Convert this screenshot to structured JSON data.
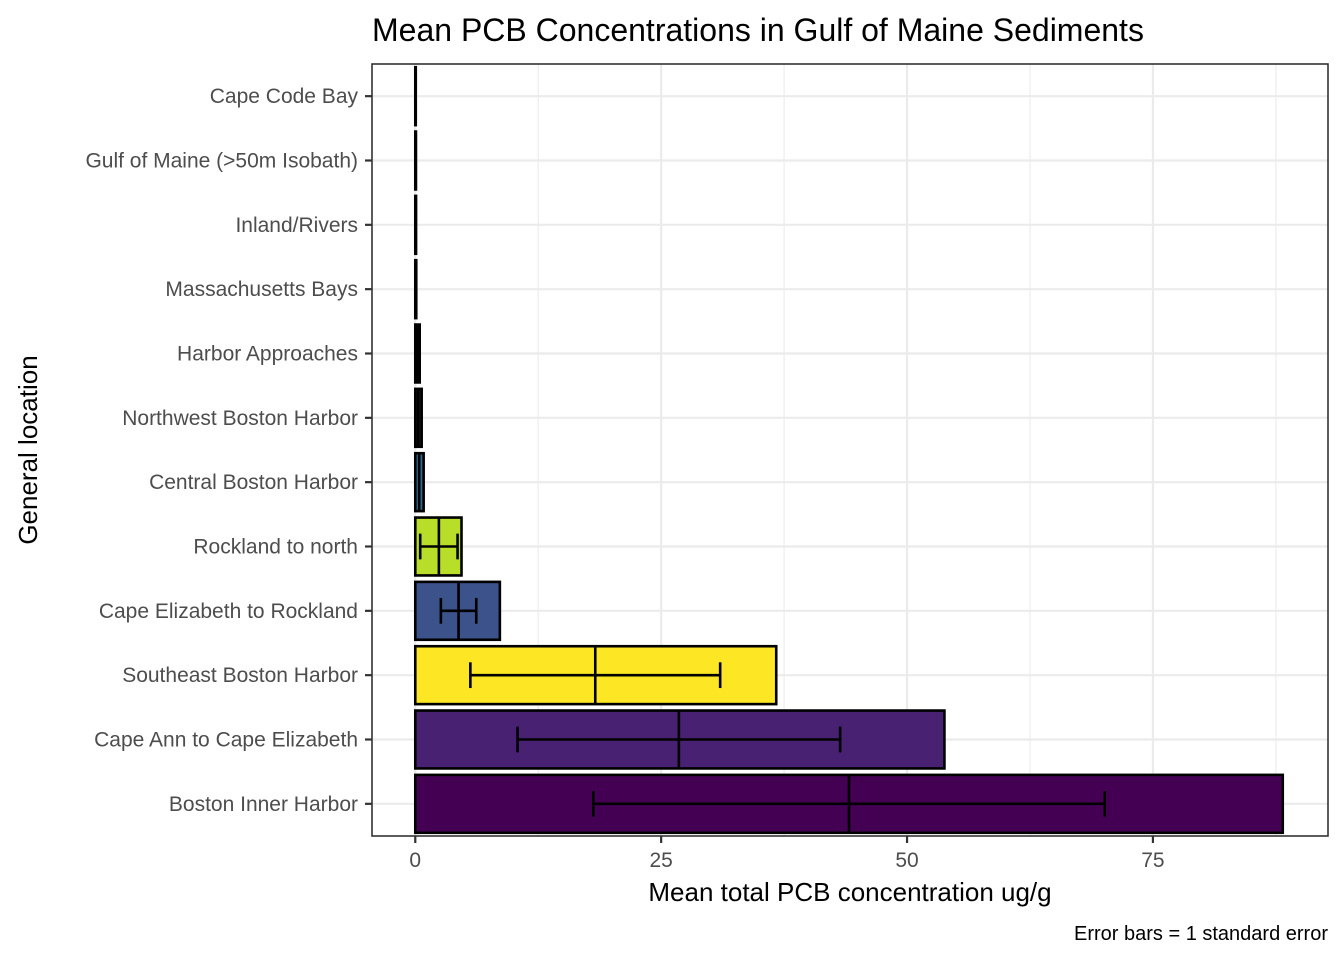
{
  "chart_data": {
    "type": "bar",
    "orientation": "horizontal",
    "title": "Mean PCB Concentrations in Gulf of Maine Sediments",
    "xlabel": "Mean total PCB concentration ug/g",
    "ylabel": "General location",
    "caption": "Error bars = 1 standard error",
    "xlim": [
      -4.4,
      92.8
    ],
    "x_ticks": [
      0,
      25,
      50,
      75
    ],
    "x_minor_ticks": [
      12.5,
      37.5,
      62.5,
      87.5
    ],
    "grid": true,
    "legend": "none",
    "categories": [
      "Cape Code Bay",
      "Gulf of Maine (>50m Isobath)",
      "Inland/Rivers",
      "Massachusetts Bays",
      "Harbor Approaches",
      "Northwest Boston Harbor",
      "Central Boston Harbor",
      "Rockland to north",
      "Cape Elizabeth to Rockland",
      "Southeast Boston Harbor",
      "Cape Ann to Cape Elizabeth",
      "Boston Inner Harbor"
    ],
    "values": [
      0.05,
      0.07,
      0.08,
      0.1,
      0.45,
      0.65,
      0.85,
      4.7,
      8.6,
      36.7,
      53.8,
      88.2
    ],
    "means": [
      0.02,
      0.03,
      0.03,
      0.04,
      0.2,
      0.3,
      0.4,
      2.4,
      4.4,
      18.3,
      26.8,
      44.1
    ],
    "error_low": [
      0.0,
      0.0,
      0.0,
      0.0,
      0.1,
      0.2,
      0.3,
      0.5,
      2.6,
      5.6,
      10.4,
      18.1
    ],
    "error_high": [
      0.04,
      0.06,
      0.06,
      0.08,
      0.3,
      0.4,
      0.5,
      4.3,
      6.2,
      31.0,
      43.2,
      70.1
    ],
    "colors": [
      "#000000",
      "#000000",
      "#000000",
      "#000000",
      "#000000",
      "#1a1a1a",
      "#31688e",
      "#b8de29",
      "#3b528b",
      "#fde725",
      "#482173",
      "#440154"
    ]
  }
}
